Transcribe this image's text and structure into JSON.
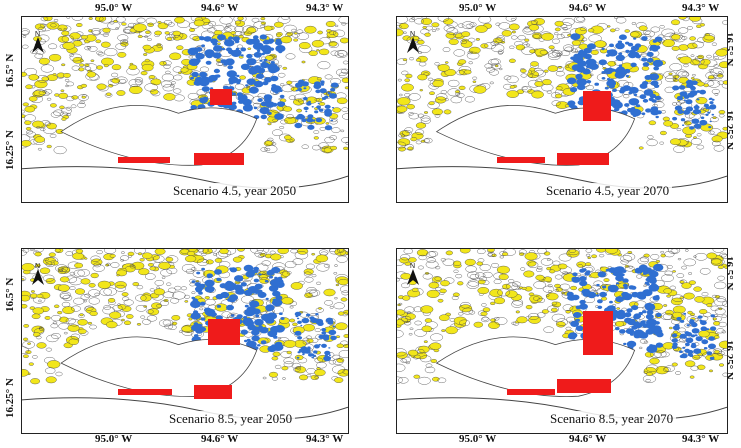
{
  "top_lon_labels": [
    "95.0° W",
    "94.6° W",
    "94.3° W"
  ],
  "bottom_lon_labels": [
    "95.0° W",
    "94.6° W",
    "94.3° W"
  ],
  "lat_labels": [
    "16.5° N",
    "16.25° N"
  ],
  "north_label": "N",
  "legend_colors": {
    "yellow": "#f2e61a",
    "blue": "#2f6fd1",
    "red": "#ef1b1b",
    "outline": "#444444"
  },
  "panels": [
    {
      "id": "p1",
      "title": "Scenario 4.5, year 2050"
    },
    {
      "id": "p2",
      "title": "Scenario 4.5, year 2070"
    },
    {
      "id": "p3",
      "title": "Scenario 8.5, year 2050"
    },
    {
      "id": "p4",
      "title": "Scenario 8.5, year 2070"
    }
  ]
}
